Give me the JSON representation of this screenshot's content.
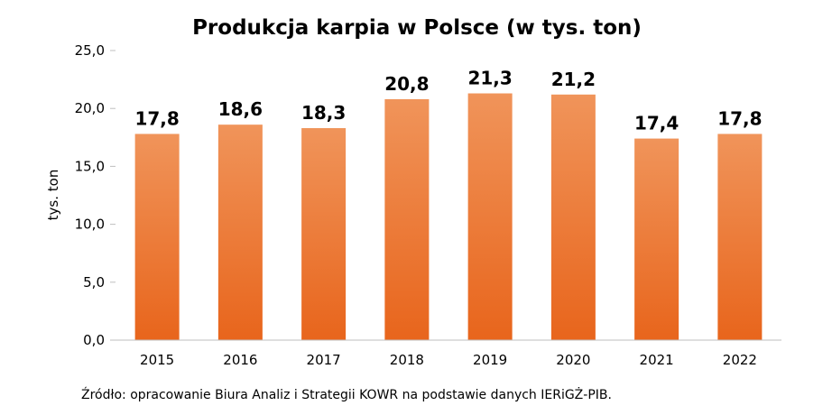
{
  "chart_data": {
    "type": "bar",
    "title": "Produkcja karpia w Polsce (w tys. ton)",
    "xlabel": "",
    "ylabel": "tys. ton",
    "categories": [
      "2015",
      "2016",
      "2017",
      "2018",
      "2019",
      "2020",
      "2021",
      "2022"
    ],
    "values": [
      17.8,
      18.6,
      18.3,
      20.8,
      21.3,
      21.2,
      17.4,
      17.8
    ],
    "value_labels": [
      "17,8",
      "18,6",
      "18,3",
      "20,8",
      "21,3",
      "21,2",
      "17,4",
      "17,8"
    ],
    "ylim": [
      0,
      25
    ],
    "yticks": [
      0,
      5,
      10,
      15,
      20,
      25
    ],
    "ytick_labels": [
      "0,0",
      "5,0",
      "10,0",
      "15,0",
      "20,0",
      "25,0"
    ],
    "grid": false,
    "legend": "none",
    "colors": {
      "bar_top": "#F0945A",
      "bar_bottom": "#E8651C",
      "axis": "#bfbfbf",
      "text": "#000000"
    }
  },
  "source_note": "Źródło: opracowanie Biura Analiz i Strategii KOWR na podstawie danych IERiGŻ-PIB."
}
